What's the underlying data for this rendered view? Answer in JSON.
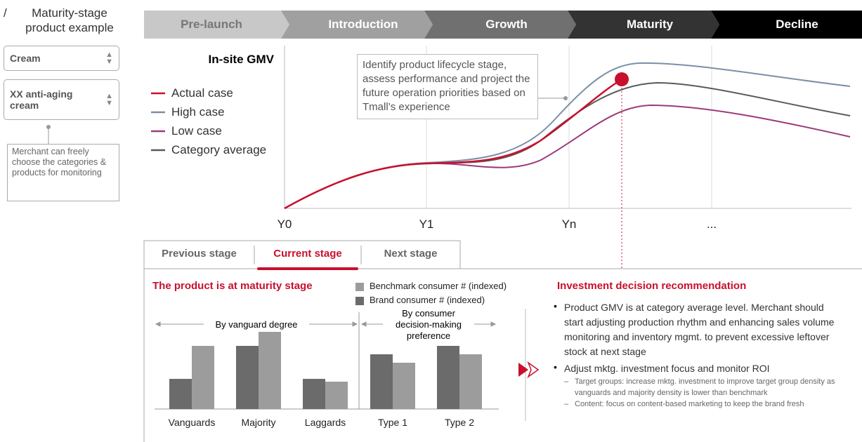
{
  "sidebar": {
    "heading": "Maturity-stage product example",
    "dropdowns": [
      "Cream",
      "XX anti-aging cream"
    ],
    "note": "Merchant can freely choose the categories & products for monitoring"
  },
  "stages": [
    "Pre-launch",
    "Introduction",
    "Growth",
    "Maturity",
    "Decline"
  ],
  "gmv_chart": {
    "title": "In-site GMV",
    "callout": "Identify product lifecycle stage, assess performance and project the future operation priorities based on Tmall’s experience",
    "legend": [
      {
        "name": "Actual case",
        "color": "#c8102e"
      },
      {
        "name": "High case",
        "color": "#7b8fa5"
      },
      {
        "name": "Low case",
        "color": "#9b3b7a"
      },
      {
        "name": "Category average",
        "color": "#5a5a5a"
      }
    ],
    "x_labels": [
      "Y0",
      "Y1",
      "Yn",
      "..."
    ]
  },
  "tabs": [
    "Previous stage",
    "Current stage",
    "Next stage"
  ],
  "stage_title": "The product is at maturity stage",
  "bar_chart": {
    "legend": [
      {
        "name": "Benchmark consumer # (indexed)",
        "color": "#9c9c9c"
      },
      {
        "name": "Brand consumer # (indexed)",
        "color": "#6b6b6b"
      }
    ],
    "groups": [
      "By vanguard degree",
      "By consumer decision-making preference"
    ],
    "categories": [
      "Vanguards",
      "Majority",
      "Laggards",
      "Type 1",
      "Type 2"
    ],
    "benchmark": [
      90,
      110,
      39,
      66,
      78
    ],
    "brand": [
      43,
      90,
      43,
      78,
      90
    ]
  },
  "recommendation": {
    "title": "Investment decision recommendation",
    "bullets": [
      {
        "text": "Product GMV is at category average level. Merchant should start adjusting production rhythm and enhancing sales volume monitoring and inventory mgmt. to prevent excessive leftover stock at next stage",
        "subs": []
      },
      {
        "text": "Adjust mktg. investment focus and monitor ROI",
        "subs": [
          "Target groups: increase mktg. investment to improve target group density as vanguards and majority density is lower than benchmark",
          "Content: focus on content-based marketing to keep the brand fresh"
        ]
      }
    ]
  }
}
